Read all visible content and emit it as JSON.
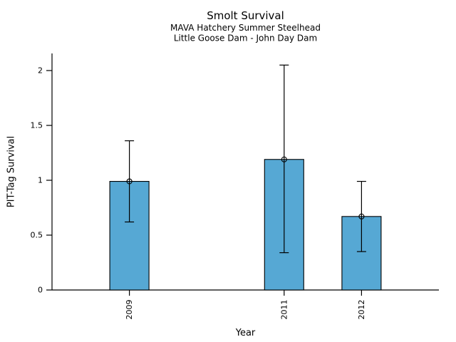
{
  "chart_data": {
    "type": "bar",
    "title": "Smolt Survival",
    "subtitle1": "MAVA Hatchery Summer Steelhead",
    "subtitle2": "Little Goose Dam - John Day Dam",
    "xlabel": "Year",
    "ylabel": "PIT-Tag Survival",
    "categories": [
      "2009",
      "2011",
      "2012"
    ],
    "x_numeric": [
      2009,
      2011,
      2012
    ],
    "values": [
      0.99,
      1.19,
      0.67
    ],
    "error_low": [
      0.62,
      0.34,
      0.35
    ],
    "error_high": [
      1.36,
      2.05,
      0.99
    ],
    "ytick_labels": [
      "0",
      "0.5",
      "1",
      "1.5",
      "2"
    ],
    "ytick_values": [
      0,
      0.5,
      1,
      1.5,
      2
    ],
    "ylim": [
      0,
      2.156
    ],
    "xlim": [
      2008,
      2013
    ],
    "grid": false,
    "legend_position": "none",
    "marker": "open-circle",
    "colors": {
      "bar_fill": "#56A8D4",
      "bar_stroke": "#000000",
      "error_stroke": "#000000",
      "axis": "#000000",
      "text": "#000000",
      "background": "#FFFFFF"
    }
  }
}
